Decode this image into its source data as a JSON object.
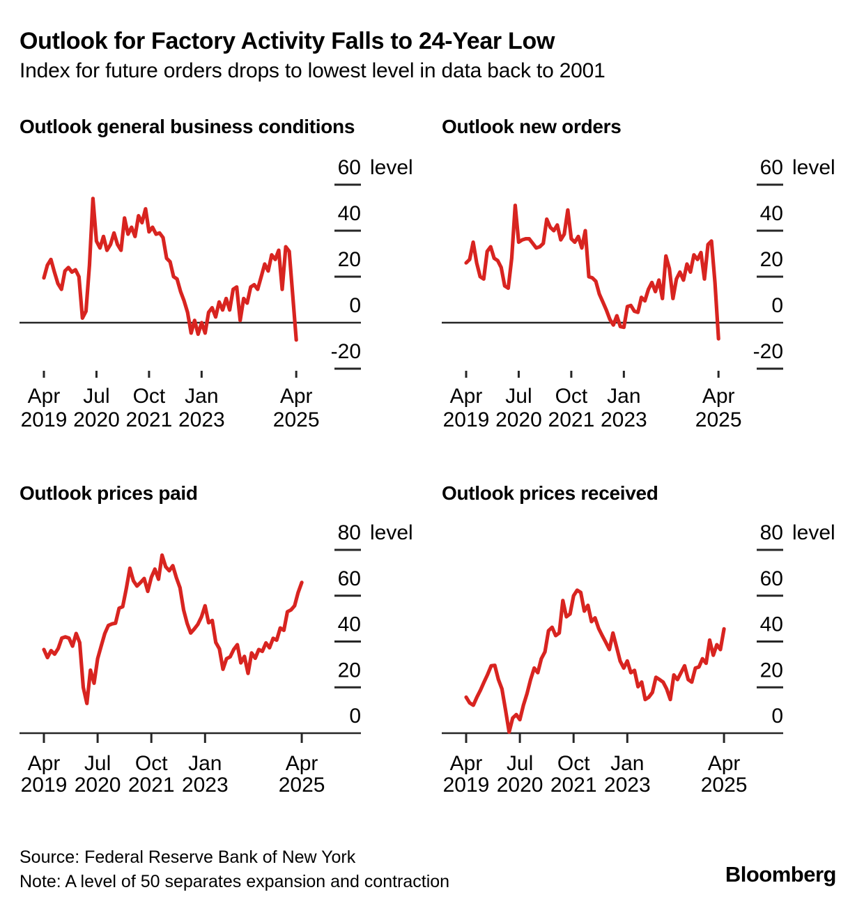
{
  "header": {
    "title": "Outlook for Factory Activity Falls to 24-Year Low",
    "subtitle": "Index for future orders drops to lowest level in data back to 2001"
  },
  "footer": {
    "source": "Source: Federal Reserve Bank of New York",
    "note": "Note: A level of 50 separates expansion and contraction",
    "logo": "Bloomberg"
  },
  "colors": {
    "series": "#d82420",
    "axis": "#262626",
    "text": "#000000",
    "background": "#ffffff"
  },
  "x_axis": {
    "start_month": "2019-04",
    "end_month": "2025-04",
    "frequency": "monthly",
    "tick_months": [
      0,
      15,
      30,
      45,
      72
    ],
    "tick_labels": [
      [
        "Apr",
        "2019"
      ],
      [
        "Jul",
        "2020"
      ],
      [
        "Oct",
        "2021"
      ],
      [
        "Jan",
        "2023"
      ],
      [
        "Apr",
        "2025"
      ]
    ]
  },
  "chart_data": [
    {
      "type": "line",
      "title": "Outlook general business conditions",
      "unit_label": "level",
      "ylim": [
        -30,
        66
      ],
      "yticks": [
        60,
        40,
        20,
        0,
        -20
      ],
      "zero_line": true,
      "values": [
        19.5,
        25,
        27.5,
        22,
        17,
        14.5,
        22.5,
        24,
        22,
        23,
        20,
        2,
        5,
        25,
        54,
        35.5,
        32.5,
        37.5,
        31.5,
        34,
        39,
        34,
        31.5,
        45.5,
        38.5,
        41.5,
        37.5,
        46.5,
        43.5,
        49.5,
        39.5,
        41.5,
        38.5,
        39,
        37,
        28,
        26.5,
        20,
        19,
        13.5,
        9.5,
        4.5,
        -4.5,
        1,
        -5,
        0,
        -4.5,
        4.5,
        6.5,
        2.5,
        9,
        5.5,
        10.5,
        5.5,
        14.5,
        15.5,
        1,
        10.5,
        8.5,
        15.5,
        16.5,
        14.5,
        20,
        25.5,
        22.5,
        29.5,
        27.5,
        31.5,
        14.5,
        33,
        31,
        12,
        -7.5
      ]
    },
    {
      "type": "line",
      "title": "Outlook new orders",
      "unit_label": "level",
      "ylim": [
        -30,
        66
      ],
      "yticks": [
        60,
        40,
        20,
        0,
        -20
      ],
      "zero_line": true,
      "values": [
        26,
        27.5,
        35,
        26,
        20,
        19,
        31,
        33,
        28,
        27,
        24,
        16,
        15,
        28,
        51,
        35,
        36,
        36.5,
        36.5,
        34.5,
        32.5,
        33,
        34.5,
        45,
        41.5,
        40,
        42.5,
        36,
        38.5,
        49,
        36.5,
        35,
        37.5,
        32.5,
        40,
        20,
        19.5,
        18,
        12.5,
        9,
        5.5,
        1.5,
        -1,
        3,
        -1.7,
        -2,
        7,
        7.5,
        5,
        4.5,
        11,
        9.5,
        14.5,
        17.5,
        13.5,
        18.5,
        10.5,
        29,
        23.5,
        10.5,
        19,
        22,
        18.5,
        25.5,
        22,
        29.5,
        27.5,
        30.5,
        19,
        34,
        35.5,
        17.5,
        -7
      ]
    },
    {
      "type": "line",
      "title": "Outlook prices paid",
      "unit_label": "level",
      "ylim": [
        -5,
        88
      ],
      "yticks": [
        80,
        60,
        40,
        20,
        0
      ],
      "zero_line": true,
      "values": [
        36.5,
        33,
        36,
        34.5,
        37,
        41.5,
        42,
        41.5,
        38,
        43.5,
        39.5,
        20,
        13,
        27.5,
        21.8,
        32.5,
        38,
        43.5,
        47,
        47.7,
        48,
        54.5,
        55.2,
        63,
        72,
        66.5,
        64.2,
        65.8,
        67.5,
        61.9,
        68,
        71.6,
        67.2,
        77.7,
        72.6,
        70.9,
        73.1,
        67.8,
        63.5,
        53.8,
        47.9,
        43.7,
        45.5,
        47.5,
        50.8,
        55.6,
        48.2,
        49.2,
        39.6,
        36.8,
        27.9,
        32.5,
        33.3,
        36.5,
        38.6,
        30.7,
        33.5,
        26.1,
        35,
        32.7,
        36.5,
        35.7,
        39.4,
        37.3,
        41.4,
        40.6,
        45.9,
        44.9,
        53,
        53.8,
        55.6,
        61.4,
        65.8
      ]
    },
    {
      "type": "line",
      "title": "Outlook prices received",
      "unit_label": "level",
      "ylim": [
        -5,
        88
      ],
      "yticks": [
        80,
        60,
        40,
        20,
        0
      ],
      "zero_line": true,
      "values": [
        15.7,
        13.2,
        12.2,
        15.7,
        18.8,
        22.3,
        25.6,
        29.4,
        29.6,
        23.4,
        19.3,
        10.2,
        0.5,
        6.6,
        8.1,
        5.9,
        12.2,
        17.3,
        23.4,
        28.4,
        26.4,
        32.5,
        35.5,
        44.7,
        46.2,
        42.6,
        43.7,
        57.9,
        50.8,
        52,
        60,
        62.4,
        61.4,
        53.3,
        55.8,
        48.7,
        50.3,
        45.7,
        42.6,
        39.6,
        36.5,
        43.7,
        37.6,
        31.5,
        28.4,
        31.5,
        26.4,
        27.4,
        20.3,
        22.3,
        14.7,
        15.7,
        17.8,
        24.4,
        23.4,
        22.3,
        19.3,
        14.7,
        25.4,
        23.4,
        26.4,
        29.4,
        23.4,
        22.3,
        28.4,
        28.9,
        32.5,
        30.5,
        40.6,
        34,
        38.6,
        36.5,
        45.5
      ]
    }
  ]
}
